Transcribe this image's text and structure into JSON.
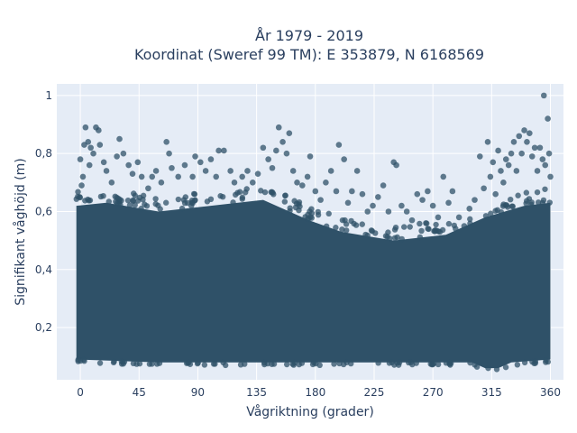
{
  "chart_data": {
    "type": "scatter",
    "title_line1": "År 1979 - 2019",
    "title_line2": "Koordinat (Sweref 99 TM): E 353879, N 6168569",
    "xlabel": "Vågriktning (grader)",
    "ylabel": "Signifikant våghöjd (m)",
    "xlim": [
      -18,
      370
    ],
    "ylim": [
      0.02,
      1.04
    ],
    "xticks": [
      0,
      45,
      90,
      135,
      180,
      225,
      270,
      315,
      360
    ],
    "xtick_labels": [
      "0",
      "45",
      "90",
      "135",
      "180",
      "225",
      "270",
      "315",
      "360"
    ],
    "yticks": [
      0.2,
      0.4,
      0.6,
      0.8,
      1.0
    ],
    "ytick_labels": [
      "0,2",
      "0,4",
      "0,6",
      "0,8",
      "1"
    ],
    "grid": true,
    "marker_color": "#2f5168",
    "plot_bg": "#e5ecf6",
    "dense_band": {
      "x_range": [
        -3,
        360
      ],
      "lower_edge": [
        {
          "x": -3,
          "y": 0.09
        },
        {
          "x": 60,
          "y": 0.08
        },
        {
          "x": 120,
          "y": 0.08
        },
        {
          "x": 180,
          "y": 0.08
        },
        {
          "x": 240,
          "y": 0.08
        },
        {
          "x": 300,
          "y": 0.08
        },
        {
          "x": 310,
          "y": 0.06
        },
        {
          "x": 320,
          "y": 0.06
        },
        {
          "x": 330,
          "y": 0.08
        },
        {
          "x": 360,
          "y": 0.09
        }
      ],
      "upper_edge": [
        {
          "x": -3,
          "y": 0.62
        },
        {
          "x": 20,
          "y": 0.63
        },
        {
          "x": 60,
          "y": 0.6
        },
        {
          "x": 100,
          "y": 0.62
        },
        {
          "x": 140,
          "y": 0.64
        },
        {
          "x": 175,
          "y": 0.57
        },
        {
          "x": 200,
          "y": 0.53
        },
        {
          "x": 240,
          "y": 0.5
        },
        {
          "x": 280,
          "y": 0.52
        },
        {
          "x": 310,
          "y": 0.58
        },
        {
          "x": 340,
          "y": 0.62
        },
        {
          "x": 360,
          "y": 0.63
        }
      ]
    },
    "points": [
      {
        "x": 0,
        "y": 0.78
      },
      {
        "x": 3,
        "y": 0.83
      },
      {
        "x": 4,
        "y": 0.89
      },
      {
        "x": 6,
        "y": 0.84
      },
      {
        "x": 8,
        "y": 0.82
      },
      {
        "x": 10,
        "y": 0.8
      },
      {
        "x": 12,
        "y": 0.89
      },
      {
        "x": 14,
        "y": 0.88
      },
      {
        "x": 15,
        "y": 0.83
      },
      {
        "x": 2,
        "y": 0.72
      },
      {
        "x": 7,
        "y": 0.76
      },
      {
        "x": 18,
        "y": 0.77
      },
      {
        "x": 20,
        "y": 0.74
      },
      {
        "x": 24,
        "y": 0.7
      },
      {
        "x": 28,
        "y": 0.79
      },
      {
        "x": 30,
        "y": 0.85
      },
      {
        "x": 33,
        "y": 0.8
      },
      {
        "x": 37,
        "y": 0.76
      },
      {
        "x": 40,
        "y": 0.73
      },
      {
        "x": 44,
        "y": 0.77
      },
      {
        "x": 47,
        "y": 0.72
      },
      {
        "x": 52,
        "y": 0.68
      },
      {
        "x": 55,
        "y": 0.72
      },
      {
        "x": 58,
        "y": 0.74
      },
      {
        "x": 62,
        "y": 0.7
      },
      {
        "x": 66,
        "y": 0.84
      },
      {
        "x": 68,
        "y": 0.8
      },
      {
        "x": 70,
        "y": 0.75
      },
      {
        "x": 75,
        "y": 0.72
      },
      {
        "x": 80,
        "y": 0.76
      },
      {
        "x": 86,
        "y": 0.72
      },
      {
        "x": 88,
        "y": 0.79
      },
      {
        "x": 92,
        "y": 0.77
      },
      {
        "x": 96,
        "y": 0.74
      },
      {
        "x": 100,
        "y": 0.78
      },
      {
        "x": 104,
        "y": 0.72
      },
      {
        "x": 106,
        "y": 0.81
      },
      {
        "x": 110,
        "y": 0.81
      },
      {
        "x": 115,
        "y": 0.74
      },
      {
        "x": 118,
        "y": 0.7
      },
      {
        "x": 124,
        "y": 0.72
      },
      {
        "x": 128,
        "y": 0.74
      },
      {
        "x": 132,
        "y": 0.7
      },
      {
        "x": 136,
        "y": 0.73
      },
      {
        "x": 140,
        "y": 0.82
      },
      {
        "x": 144,
        "y": 0.78
      },
      {
        "x": 147,
        "y": 0.75
      },
      {
        "x": 150,
        "y": 0.81
      },
      {
        "x": 152,
        "y": 0.89
      },
      {
        "x": 155,
        "y": 0.84
      },
      {
        "x": 158,
        "y": 0.8
      },
      {
        "x": 160,
        "y": 0.87
      },
      {
        "x": 163,
        "y": 0.74
      },
      {
        "x": 166,
        "y": 0.7
      },
      {
        "x": 170,
        "y": 0.69
      },
      {
        "x": 174,
        "y": 0.72
      },
      {
        "x": 176,
        "y": 0.79
      },
      {
        "x": 180,
        "y": 0.67
      },
      {
        "x": 184,
        "y": 0.64
      },
      {
        "x": 188,
        "y": 0.7
      },
      {
        "x": 192,
        "y": 0.74
      },
      {
        "x": 196,
        "y": 0.67
      },
      {
        "x": 198,
        "y": 0.83
      },
      {
        "x": 202,
        "y": 0.78
      },
      {
        "x": 205,
        "y": 0.63
      },
      {
        "x": 208,
        "y": 0.67
      },
      {
        "x": 212,
        "y": 0.74
      },
      {
        "x": 216,
        "y": 0.66
      },
      {
        "x": 220,
        "y": 0.6
      },
      {
        "x": 224,
        "y": 0.62
      },
      {
        "x": 228,
        "y": 0.65
      },
      {
        "x": 232,
        "y": 0.69
      },
      {
        "x": 236,
        "y": 0.6
      },
      {
        "x": 240,
        "y": 0.77
      },
      {
        "x": 242,
        "y": 0.76
      },
      {
        "x": 246,
        "y": 0.62
      },
      {
        "x": 250,
        "y": 0.6
      },
      {
        "x": 254,
        "y": 0.57
      },
      {
        "x": 258,
        "y": 0.66
      },
      {
        "x": 262,
        "y": 0.64
      },
      {
        "x": 266,
        "y": 0.67
      },
      {
        "x": 270,
        "y": 0.62
      },
      {
        "x": 274,
        "y": 0.58
      },
      {
        "x": 278,
        "y": 0.72
      },
      {
        "x": 282,
        "y": 0.63
      },
      {
        "x": 285,
        "y": 0.67
      },
      {
        "x": 290,
        "y": 0.58
      },
      {
        "x": 294,
        "y": 0.55
      },
      {
        "x": 298,
        "y": 0.61
      },
      {
        "x": 302,
        "y": 0.64
      },
      {
        "x": 306,
        "y": 0.79
      },
      {
        "x": 309,
        "y": 0.68
      },
      {
        "x": 312,
        "y": 0.84
      },
      {
        "x": 314,
        "y": 0.72
      },
      {
        "x": 316,
        "y": 0.77
      },
      {
        "x": 318,
        "y": 0.66
      },
      {
        "x": 320,
        "y": 0.81
      },
      {
        "x": 322,
        "y": 0.74
      },
      {
        "x": 324,
        "y": 0.7
      },
      {
        "x": 326,
        "y": 0.78
      },
      {
        "x": 328,
        "y": 0.76
      },
      {
        "x": 330,
        "y": 0.8
      },
      {
        "x": 332,
        "y": 0.84
      },
      {
        "x": 334,
        "y": 0.74
      },
      {
        "x": 336,
        "y": 0.86
      },
      {
        "x": 338,
        "y": 0.8
      },
      {
        "x": 340,
        "y": 0.88
      },
      {
        "x": 342,
        "y": 0.84
      },
      {
        "x": 344,
        "y": 0.87
      },
      {
        "x": 346,
        "y": 0.79
      },
      {
        "x": 348,
        "y": 0.82
      },
      {
        "x": 350,
        "y": 0.74
      },
      {
        "x": 352,
        "y": 0.82
      },
      {
        "x": 354,
        "y": 0.78
      },
      {
        "x": 355,
        "y": 1.0
      },
      {
        "x": 356,
        "y": 0.76
      },
      {
        "x": 358,
        "y": 0.92
      },
      {
        "x": 360,
        "y": 0.72
      },
      {
        "x": 359,
        "y": 0.8
      },
      {
        "x": 1,
        "y": 0.69
      }
    ]
  }
}
